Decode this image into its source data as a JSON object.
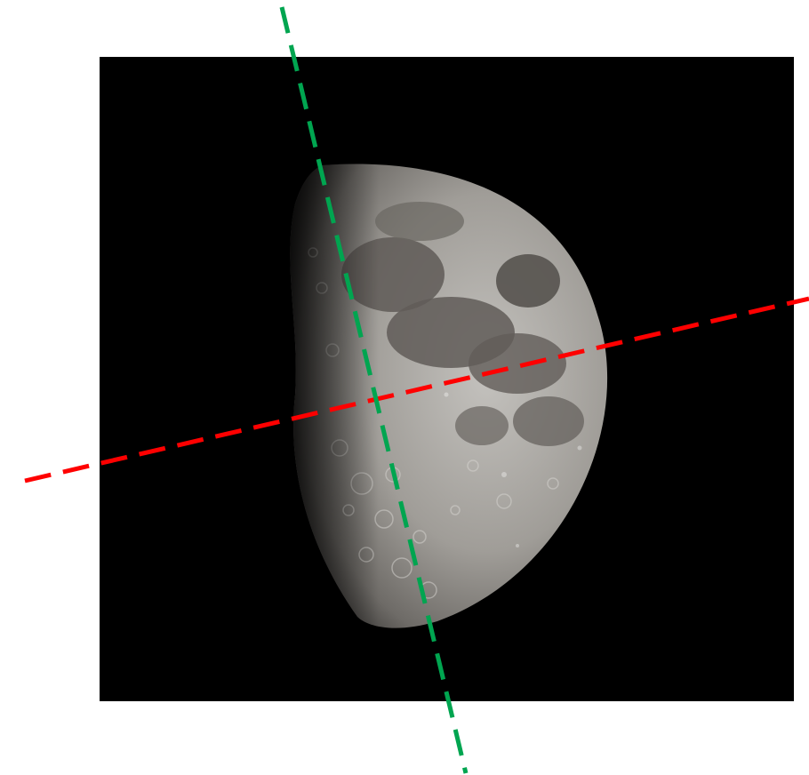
{
  "image": {
    "subject": "moon",
    "phase": "waxing-gibbous",
    "colors": {
      "background": "#000000",
      "page": "#ffffff",
      "moon_light": "#b8b6b2",
      "moon_mid": "#8f8c87",
      "maria": "#5e5a56",
      "terminator": "#2a2826"
    }
  },
  "overlay": {
    "lines": [
      {
        "name": "equator-line",
        "color": "#ff0000",
        "style": "dashed"
      },
      {
        "name": "axis-line",
        "color": "#00a550",
        "style": "dashed"
      }
    ]
  }
}
